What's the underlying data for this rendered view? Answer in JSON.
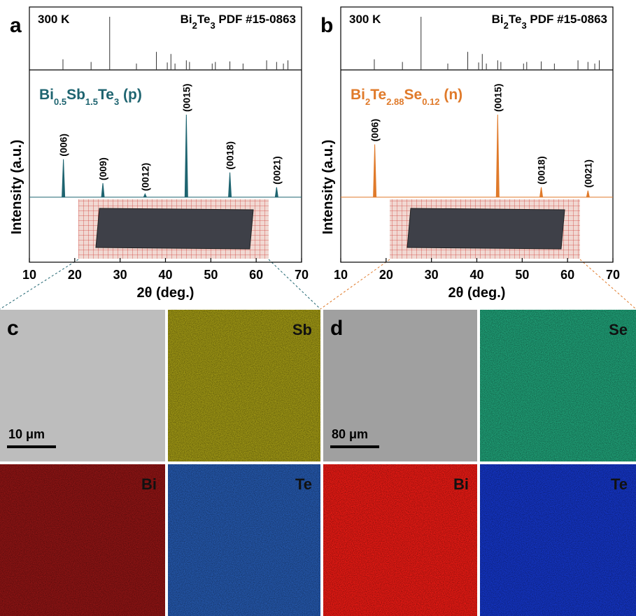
{
  "chart_data": [
    {
      "type": "xrd",
      "panel": "a",
      "annotation": "300 K",
      "reference_label": [
        {
          "text": "Bi"
        },
        {
          "text": "2",
          "sub": true
        },
        {
          "text": "Te"
        },
        {
          "text": "3",
          "sub": true
        },
        {
          "text": " PDF #15-0863"
        }
      ],
      "sample_label": [
        {
          "text": "Bi"
        },
        {
          "text": "0.5",
          "sub": true
        },
        {
          "text": "Sb"
        },
        {
          "text": "1.5",
          "sub": true
        },
        {
          "text": "Te"
        },
        {
          "text": "3",
          "sub": true
        },
        {
          "text": " (p)"
        }
      ],
      "xlabel": "2θ (deg.)",
      "ylabel": "Intensity (a.u.)",
      "color": "#1e6470",
      "xlim": [
        10,
        70
      ],
      "xticks": [
        10,
        20,
        30,
        40,
        50,
        60,
        70
      ],
      "x": [
        17.5,
        26.2,
        35.5,
        44.6,
        54.2,
        64.5
      ],
      "values": [
        46,
        17,
        4,
        100,
        30,
        12
      ],
      "peak_labels": [
        "(006)",
        "(009)",
        "(0012)",
        "(0015)",
        "(0018)",
        "(0021)"
      ],
      "reference": {
        "x": [
          17.4,
          23.6,
          27.7,
          33.6,
          38.0,
          40.4,
          41.2,
          42.1,
          44.6,
          45.3,
          50.3,
          51.0,
          54.2,
          57.1,
          62.3,
          64.5,
          66.0,
          67.0
        ],
        "values": [
          20,
          15,
          100,
          12,
          34,
          14,
          30,
          12,
          18,
          15,
          12,
          15,
          16,
          12,
          18,
          15,
          12,
          18
        ]
      }
    },
    {
      "type": "xrd",
      "panel": "b",
      "annotation": "300 K",
      "reference_label": [
        {
          "text": "Bi"
        },
        {
          "text": "2",
          "sub": true
        },
        {
          "text": "Te"
        },
        {
          "text": "3",
          "sub": true
        },
        {
          "text": " PDF #15-0863"
        }
      ],
      "sample_label": [
        {
          "text": "Bi"
        },
        {
          "text": "2",
          "sub": true
        },
        {
          "text": "Te"
        },
        {
          "text": "2.88",
          "sub": true
        },
        {
          "text": "Se"
        },
        {
          "text": "0.12",
          "sub": true
        },
        {
          "text": " (n)"
        }
      ],
      "xlabel": "2θ (deg.)",
      "ylabel": "Intensity (a.u.)",
      "color": "#e07a2a",
      "xlim": [
        10,
        70
      ],
      "xticks": [
        10,
        20,
        30,
        40,
        50,
        60,
        70
      ],
      "x": [
        17.5,
        44.6,
        54.2,
        64.5
      ],
      "values": [
        64,
        100,
        12,
        8
      ],
      "peak_labels": [
        "(006)",
        "(0015)",
        "(0018)",
        "(0021)"
      ],
      "reference": {
        "x": [
          17.4,
          23.6,
          27.7,
          33.6,
          38.0,
          40.4,
          41.2,
          42.1,
          44.6,
          45.3,
          50.3,
          51.0,
          54.2,
          57.1,
          62.3,
          64.5,
          66.0,
          67.0
        ],
        "values": [
          20,
          15,
          100,
          12,
          34,
          14,
          30,
          12,
          18,
          15,
          12,
          15,
          16,
          12,
          18,
          15,
          12,
          18
        ]
      }
    }
  ],
  "maps": [
    {
      "panel": "c",
      "scale_bar": "10 μm",
      "sem_color": "#bdbdbd",
      "tiles": [
        {
          "element": "Sb",
          "color": "#9c9414"
        },
        {
          "element": "Bi",
          "color": "#8c1414"
        },
        {
          "element": "Te",
          "color": "#2456a8"
        }
      ]
    },
    {
      "panel": "d",
      "scale_bar": "80 μm",
      "sem_color": "#a0a0a0",
      "tiles": [
        {
          "element": "Se",
          "color": "#1f9c74"
        },
        {
          "element": "Bi",
          "color": "#e41a14"
        },
        {
          "element": "Te",
          "color": "#1434c0"
        }
      ]
    }
  ]
}
